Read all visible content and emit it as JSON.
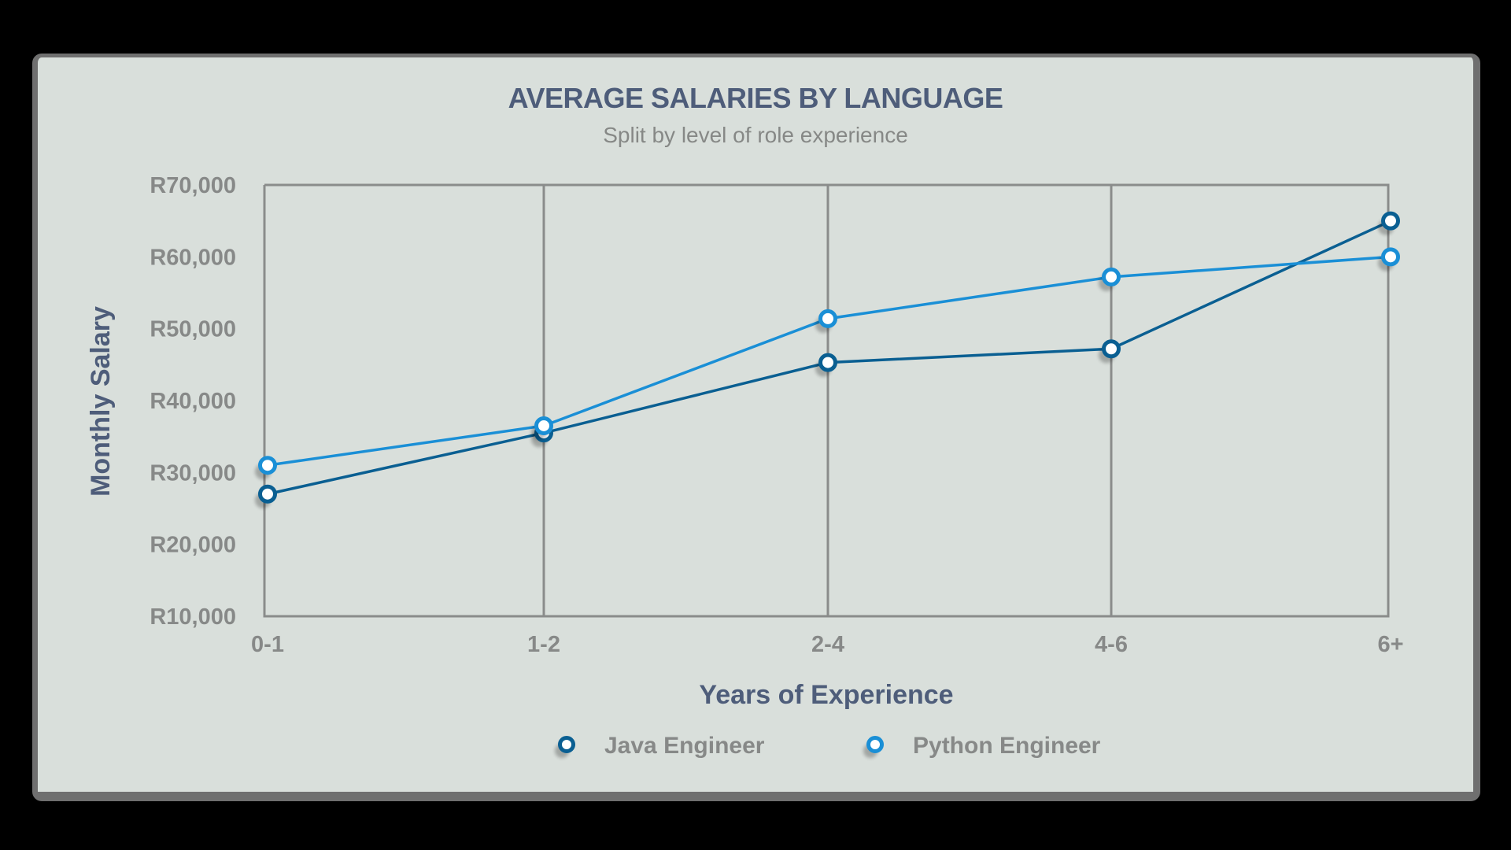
{
  "chart_data": {
    "type": "line",
    "title": "AVERAGE SALARIES BY LANGUAGE",
    "subtitle": "Split by level of role experience",
    "xlabel": "Years of Experience",
    "ylabel": "Monthly Salary",
    "categories": [
      "0-1",
      "1-2",
      "2-4",
      "4-6",
      "6+"
    ],
    "yticks": [
      "R10,000",
      "R20,000",
      "R30,000",
      "R40,000",
      "R50,000",
      "R60,000",
      "R70,000"
    ],
    "ylim": [
      10000,
      70000
    ],
    "grid": "vertical",
    "legend_position": "bottom",
    "series": [
      {
        "name": "Java Engineer",
        "color": "#0a5f92",
        "values": [
          27000,
          35500,
          45300,
          47200,
          65000
        ]
      },
      {
        "name": "Python Engineer",
        "color": "#1a8fd6",
        "values": [
          31000,
          36500,
          51400,
          57200,
          60000
        ]
      }
    ]
  },
  "colors": {
    "background": "#d9dfdb",
    "frame": "#6f6f6f",
    "title": "#4e5d7a",
    "tick_labels": "#878988",
    "gridlines": "#8a8c8b"
  }
}
